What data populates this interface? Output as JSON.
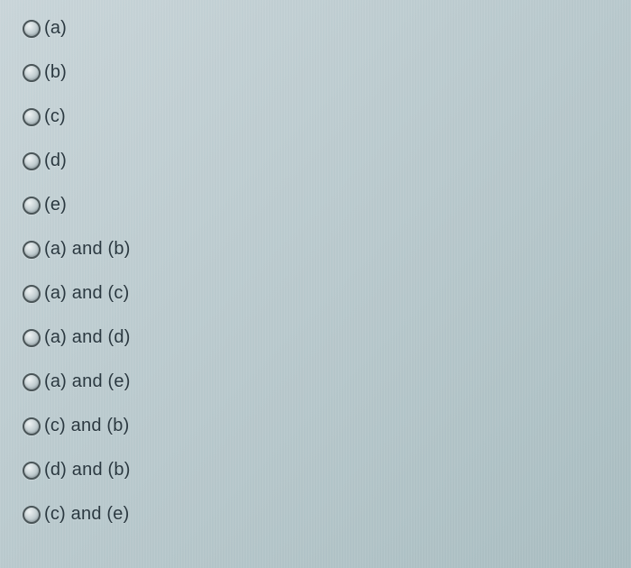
{
  "options": [
    {
      "label": "(a)"
    },
    {
      "label": "(b)"
    },
    {
      "label": "(c)"
    },
    {
      "label": "(d)"
    },
    {
      "label": "(e)"
    },
    {
      "label": "(a) and (b)"
    },
    {
      "label": "(a) and (c)"
    },
    {
      "label": "(a) and (d)"
    },
    {
      "label": "(a) and (e)"
    },
    {
      "label": "(c) and (b)"
    },
    {
      "label": "(d) and (b)"
    },
    {
      "label": "(c) and (e)"
    }
  ],
  "styling": {
    "background_gradient_start": "#c8d4d8",
    "background_gradient_end": "#a8bcc0",
    "radio_border_color": "#4a5558",
    "radio_fill_light": "#eef2f3",
    "radio_fill_dark": "#9aaab0",
    "label_color": "#2a3840",
    "label_fontsize": 20,
    "row_gap": 26,
    "radio_size": 20
  }
}
